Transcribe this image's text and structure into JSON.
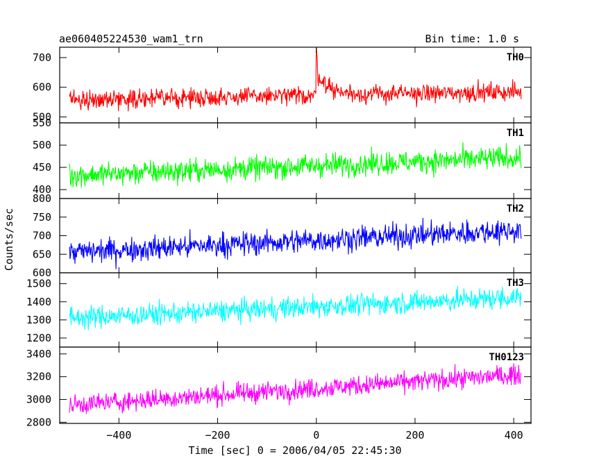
{
  "chart_data": {
    "type": "line",
    "title": "ae060405224530_wam1_trn",
    "subtitle": "Bin time: 1.0 s",
    "xlabel": "Time [sec] 0 = 2006/04/05 22:45:30",
    "ylabel": "Counts/sec",
    "xlim": [
      -520,
      435
    ],
    "x_range": [
      -500,
      415
    ],
    "x_step": 1,
    "x_ticks": [
      -400,
      -200,
      0,
      200,
      400
    ],
    "x_tick_labels": [
      "−400",
      "−200",
      "0",
      "200",
      "400"
    ],
    "grid": false,
    "series": [
      {
        "name": "TH0",
        "color": "#ff0000",
        "ylim": [
          480,
          735
        ],
        "y_ticks": [
          500,
          600,
          700
        ],
        "trend": {
          "start": 558,
          "end": 585
        },
        "noise_amplitude": 28,
        "burst": {
          "x": 0,
          "peak": 735,
          "decay": 25,
          "height": 80
        }
      },
      {
        "name": "TH1",
        "color": "#00ff00",
        "ylim": [
          380,
          550
        ],
        "y_ticks": [
          400,
          450,
          500,
          550
        ],
        "trend": {
          "start": 432,
          "end": 472
        },
        "noise_amplitude": 24
      },
      {
        "name": "TH2",
        "color": "#0000ff",
        "ylim": [
          600,
          800
        ],
        "y_ticks": [
          600,
          650,
          700,
          750,
          800
        ],
        "trend": {
          "start": 655,
          "end": 715
        },
        "noise_amplitude": 30
      },
      {
        "name": "TH3",
        "color": "#00ffff",
        "ylim": [
          1150,
          1560
        ],
        "y_ticks": [
          1200,
          1300,
          1400,
          1500
        ],
        "trend": {
          "start": 1310,
          "end": 1425
        },
        "noise_amplitude": 55
      },
      {
        "name": "TH0123",
        "color": "#ff00ff",
        "ylim": [
          2790,
          3460
        ],
        "y_ticks": [
          2800,
          3000,
          3200,
          3400
        ],
        "trend": {
          "start": 2950,
          "end": 3220
        },
        "noise_amplitude": 80
      }
    ]
  }
}
